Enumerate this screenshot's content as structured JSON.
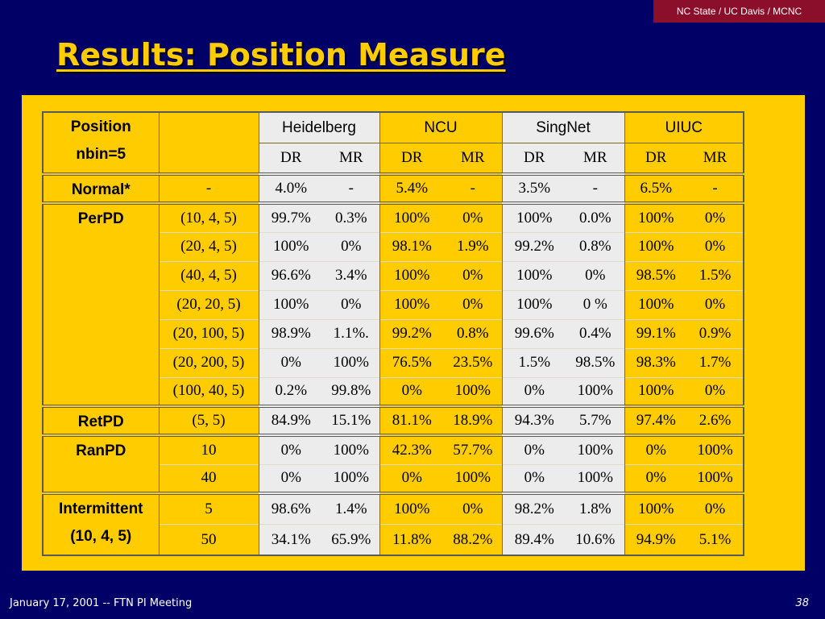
{
  "header": {
    "badge": "NC State / UC Davis / MCNC"
  },
  "title": "Results: Position Measure",
  "table": {
    "corner_line1": "Position",
    "corner_line2": "nbin=5",
    "sites": [
      "Heidelberg",
      "NCU",
      "SingNet",
      "UIUC"
    ],
    "dr": "DR",
    "mr": "MR",
    "groups": [
      {
        "label": [
          "Normal*"
        ],
        "rows": [
          {
            "param": "-",
            "vals": [
              "4.0%",
              "-",
              "5.4%",
              "-",
              "3.5%",
              "-",
              "6.5%",
              "-"
            ]
          }
        ]
      },
      {
        "label": [
          "PerPD"
        ],
        "rows": [
          {
            "param": "(10, 4, 5)",
            "vals": [
              "99.7%",
              "0.3%",
              "100%",
              "0%",
              "100%",
              "0.0%",
              "100%",
              "0%"
            ]
          },
          {
            "param": "(20, 4, 5)",
            "vals": [
              "100%",
              "0%",
              "98.1%",
              "1.9%",
              "99.2%",
              "0.8%",
              "100%",
              "0%"
            ]
          },
          {
            "param": "(40, 4, 5)",
            "vals": [
              "96.6%",
              "3.4%",
              "100%",
              "0%",
              "100%",
              "0%",
              "98.5%",
              "1.5%"
            ]
          },
          {
            "param": "(20, 20, 5)",
            "vals": [
              "100%",
              "0%",
              "100%",
              "0%",
              "100%",
              "0 %",
              "100%",
              "0%"
            ]
          },
          {
            "param": "(20, 100, 5)",
            "vals": [
              "98.9%",
              "1.1%.",
              "99.2%",
              "0.8%",
              "99.6%",
              "0.4%",
              "99.1%",
              "0.9%"
            ]
          },
          {
            "param": "(20, 200, 5)",
            "vals": [
              "0%",
              "100%",
              "76.5%",
              "23.5%",
              "1.5%",
              "98.5%",
              "98.3%",
              "1.7%"
            ]
          },
          {
            "param": "(100, 40, 5)",
            "vals": [
              "0.2%",
              "99.8%",
              "0%",
              "100%",
              "0%",
              "100%",
              "100%",
              "0%"
            ]
          }
        ]
      },
      {
        "label": [
          "RetPD"
        ],
        "rows": [
          {
            "param": "(5, 5)",
            "vals": [
              "84.9%",
              "15.1%",
              "81.1%",
              "18.9%",
              "94.3%",
              "5.7%",
              "97.4%",
              "2.6%"
            ]
          }
        ]
      },
      {
        "label": [
          "RanPD"
        ],
        "rows": [
          {
            "param": "10",
            "vals": [
              "0%",
              "100%",
              "42.3%",
              "57.7%",
              "0%",
              "100%",
              "0%",
              "100%"
            ]
          },
          {
            "param": "40",
            "vals": [
              "0%",
              "100%",
              "0%",
              "100%",
              "0%",
              "100%",
              "0%",
              "100%"
            ]
          }
        ]
      },
      {
        "label": [
          "Intermittent",
          "(10, 4, 5)"
        ],
        "rows": [
          {
            "param": "5",
            "vals": [
              "98.6%",
              "1.4%",
              "100%",
              "0%",
              "98.2%",
              "1.8%",
              "100%",
              "0%"
            ]
          },
          {
            "param": "50",
            "vals": [
              "34.1%",
              "65.9%",
              "11.8%",
              "88.2%",
              "89.4%",
              "10.6%",
              "94.9%",
              "5.1%"
            ]
          }
        ]
      }
    ]
  },
  "footer": {
    "left": "January 17, 2001 -- FTN PI Meeting",
    "page": "38"
  },
  "colors": {
    "background": "#000066",
    "accent": "#ffcc00",
    "badge": "#8b0f2a",
    "cell_gray": "#ececec"
  }
}
